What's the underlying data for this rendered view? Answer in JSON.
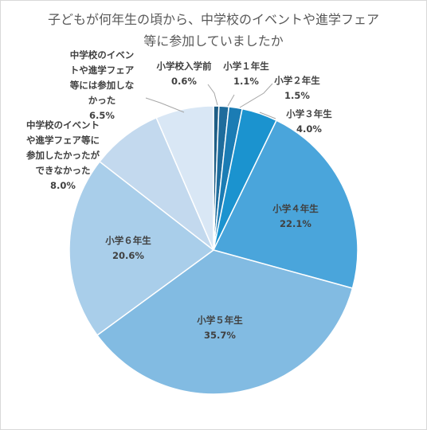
{
  "chart_data": {
    "type": "pie",
    "title_lines": [
      "子どもが何年生の頃から、中学校のイベントや進学フェア",
      "等に参加していましたか"
    ],
    "slices": [
      {
        "label": "小学校入学前",
        "label_lines": [
          "小学校入学前"
        ],
        "value": 0.6,
        "value_label": "0.6%",
        "color": "#1F5E86"
      },
      {
        "label": "小学１年生",
        "label_lines": [
          "小学１年生"
        ],
        "value": 1.1,
        "value_label": "1.1%",
        "color": "#1E6C9C"
      },
      {
        "label": "小学２年生",
        "label_lines": [
          "小学２年生"
        ],
        "value": 1.5,
        "value_label": "1.5%",
        "color": "#1B7CB4"
      },
      {
        "label": "小学３年生",
        "label_lines": [
          "小学３年生"
        ],
        "value": 4.0,
        "value_label": "4.0%",
        "color": "#1B93CF"
      },
      {
        "label": "小学４年生",
        "label_lines": [
          "小学４年生"
        ],
        "value": 22.1,
        "value_label": "22.1%",
        "color": "#4AA5DB"
      },
      {
        "label": "小学５年生",
        "label_lines": [
          "小学５年生"
        ],
        "value": 35.7,
        "value_label": "35.7%",
        "color": "#82BBE2"
      },
      {
        "label": "小学６年生",
        "label_lines": [
          "小学６年生"
        ],
        "value": 20.6,
        "value_label": "20.6%",
        "color": "#A9CEEA"
      },
      {
        "label": "中学校のイベントや進学フェア等に参加したかったができなかった",
        "label_lines": [
          "中学校のイベント",
          "や進学フェア等に",
          "参加したかったが",
          "できなかった"
        ],
        "value": 8.0,
        "value_label": "8.0%",
        "color": "#C3D9EE"
      },
      {
        "label": "中学校のイベントや進学フェア等には参加しなかった",
        "label_lines": [
          "中学校のイベン",
          "トや進学フェア",
          "等には参加しな",
          "かった"
        ],
        "value": 6.5,
        "value_label": "6.5%",
        "color": "#D9E7F5"
      }
    ]
  }
}
